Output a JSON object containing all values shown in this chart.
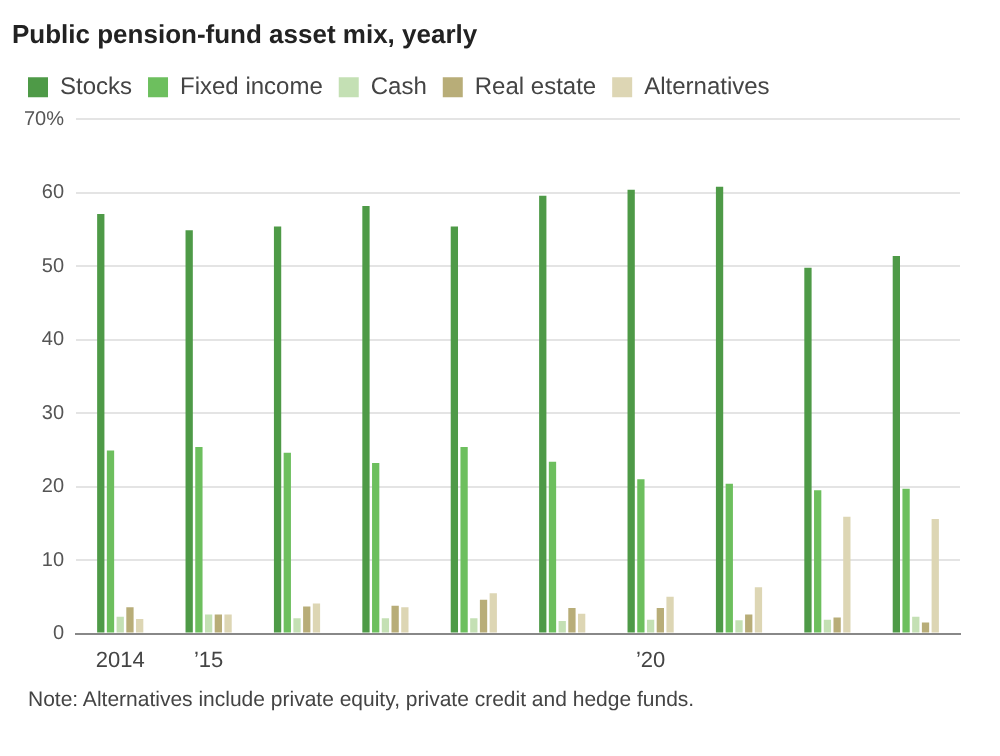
{
  "chart_data": {
    "type": "bar",
    "title": "Public pension-fund asset mix, yearly",
    "categories": [
      "2014",
      "’15",
      null,
      null,
      null,
      null,
      "’20",
      null,
      null,
      null
    ],
    "series": [
      {
        "name": "Stocks",
        "color": "#4e9a47",
        "values": [
          57.1,
          54.9,
          55.4,
          58.2,
          55.4,
          59.6,
          60.4,
          60.8,
          49.8,
          51.4
        ]
      },
      {
        "name": "Fixed income",
        "color": "#6dbf5e",
        "values": [
          24.9,
          25.4,
          24.6,
          23.2,
          25.4,
          23.4,
          21.0,
          20.4,
          19.5,
          19.7
        ]
      },
      {
        "name": "Cash",
        "color": "#c4e0b4",
        "values": [
          2.3,
          2.6,
          2.1,
          2.1,
          2.1,
          1.7,
          1.9,
          1.8,
          1.9,
          2.3
        ]
      },
      {
        "name": "Real estate",
        "color": "#b8ad78",
        "values": [
          3.6,
          2.6,
          3.7,
          3.8,
          4.6,
          3.5,
          3.5,
          2.6,
          2.2,
          1.5
        ]
      },
      {
        "name": "Alternatives",
        "color": "#ddd6b4",
        "values": [
          2.0,
          2.6,
          4.1,
          3.6,
          5.5,
          2.7,
          5.0,
          6.3,
          15.9,
          15.6
        ]
      }
    ],
    "ylim": [
      0,
      70
    ],
    "yticks": [
      0,
      10,
      20,
      30,
      40,
      50,
      60,
      {
        "value": 70,
        "label": "70%"
      }
    ],
    "grid": "y",
    "legend": "top left",
    "annotations": [
      "Note: Alternatives include private equity, private credit and hedge funds."
    ]
  }
}
